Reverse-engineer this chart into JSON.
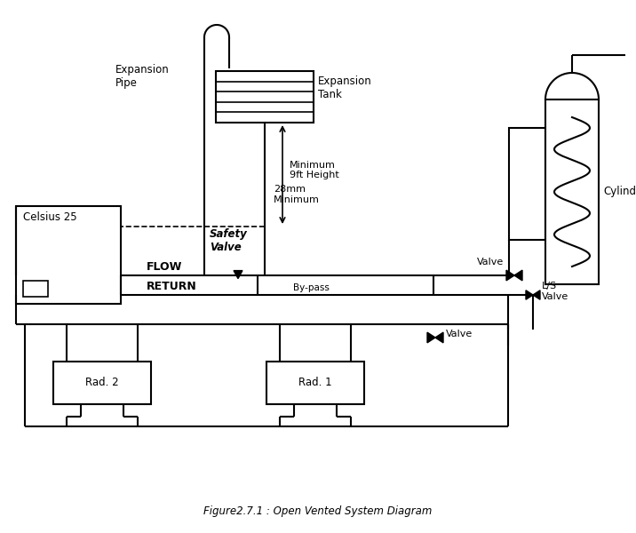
{
  "title": "Figure2.7.1 : Open Vented System Diagram",
  "bg": "#ffffff",
  "lc": "#000000",
  "labels": {
    "expansion_pipe": "Expansion\nPipe",
    "expansion_tank": "Expansion\nTank",
    "min_height": "Minimum\n9ft Height",
    "min_28mm": "28mm\nMinimum",
    "safety_valve": "Safety\nValve",
    "flow": "FLOW",
    "return_": "RETURN",
    "bypass": "By-pass",
    "valve": "Valve",
    "ls_valve": "L/S\nValve",
    "valve_bot": "Valve",
    "cylinder": "Cylinder",
    "celsius": "Celsius 25",
    "rad1": "Rad. 1",
    "rad2": "Rad. 2"
  }
}
